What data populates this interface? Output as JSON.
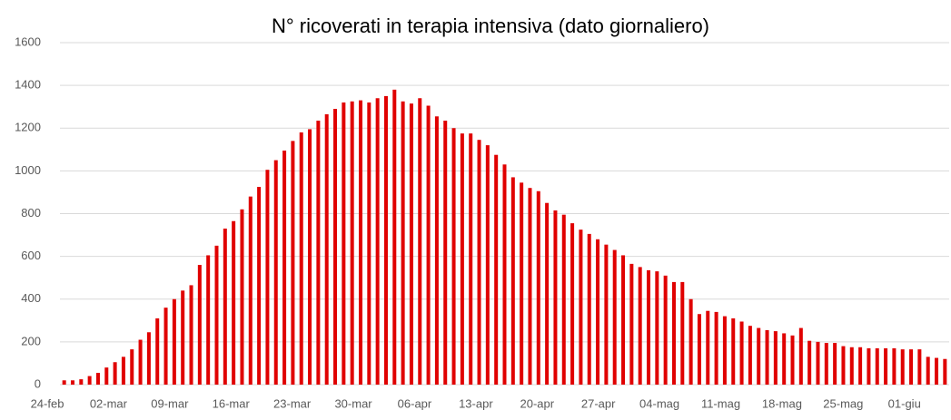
{
  "chart_data": {
    "type": "bar",
    "title": "N° ricoverati in terapia intensiva (dato giornaliero)",
    "categories": [
      "24-feb",
      null,
      null,
      null,
      null,
      null,
      null,
      "02-mar",
      null,
      null,
      null,
      null,
      null,
      null,
      "09-mar",
      null,
      null,
      null,
      null,
      null,
      null,
      "16-mar",
      null,
      null,
      null,
      null,
      null,
      null,
      "23-mar",
      null,
      null,
      null,
      null,
      null,
      null,
      "30-mar",
      null,
      null,
      null,
      null,
      null,
      null,
      "06-apr",
      null,
      null,
      null,
      null,
      null,
      null,
      "13-apr",
      null,
      null,
      null,
      null,
      null,
      null,
      "20-apr",
      null,
      null,
      null,
      null,
      null,
      null,
      "27-apr",
      null,
      null,
      null,
      null,
      null,
      null,
      "04-mag",
      null,
      null,
      null,
      null,
      null,
      null,
      "11-mag",
      null,
      null,
      null,
      null,
      null,
      null,
      "18-mag",
      null,
      null,
      null,
      null,
      null,
      null,
      "25-mag",
      null,
      null,
      null,
      null,
      null,
      null,
      "01-giu",
      null,
      null,
      null,
      null,
      null,
      null
    ],
    "values": [
      20,
      20,
      25,
      40,
      55,
      80,
      105,
      130,
      165,
      210,
      245,
      310,
      360,
      400,
      440,
      465,
      560,
      605,
      650,
      730,
      765,
      820,
      880,
      925,
      1005,
      1050,
      1095,
      1140,
      1180,
      1195,
      1235,
      1265,
      1290,
      1320,
      1325,
      1330,
      1320,
      1340,
      1350,
      1380,
      1325,
      1315,
      1340,
      1305,
      1255,
      1235,
      1200,
      1175,
      1175,
      1145,
      1120,
      1075,
      1030,
      970,
      945,
      920,
      905,
      850,
      815,
      795,
      755,
      725,
      705,
      680,
      655,
      630,
      605,
      565,
      550,
      535,
      530,
      510,
      480,
      480,
      400,
      330,
      345,
      340,
      320,
      310,
      295,
      275,
      265,
      255,
      250,
      240,
      230,
      265,
      205,
      200,
      195,
      195,
      180,
      175,
      175,
      170,
      170,
      170,
      170,
      165,
      165,
      165,
      130,
      125,
      120
    ],
    "color": "#e00000",
    "ylim": [
      0,
      1600
    ],
    "yticks": [
      0,
      200,
      400,
      600,
      800,
      1000,
      1200,
      1400,
      1600
    ],
    "grid": true
  }
}
